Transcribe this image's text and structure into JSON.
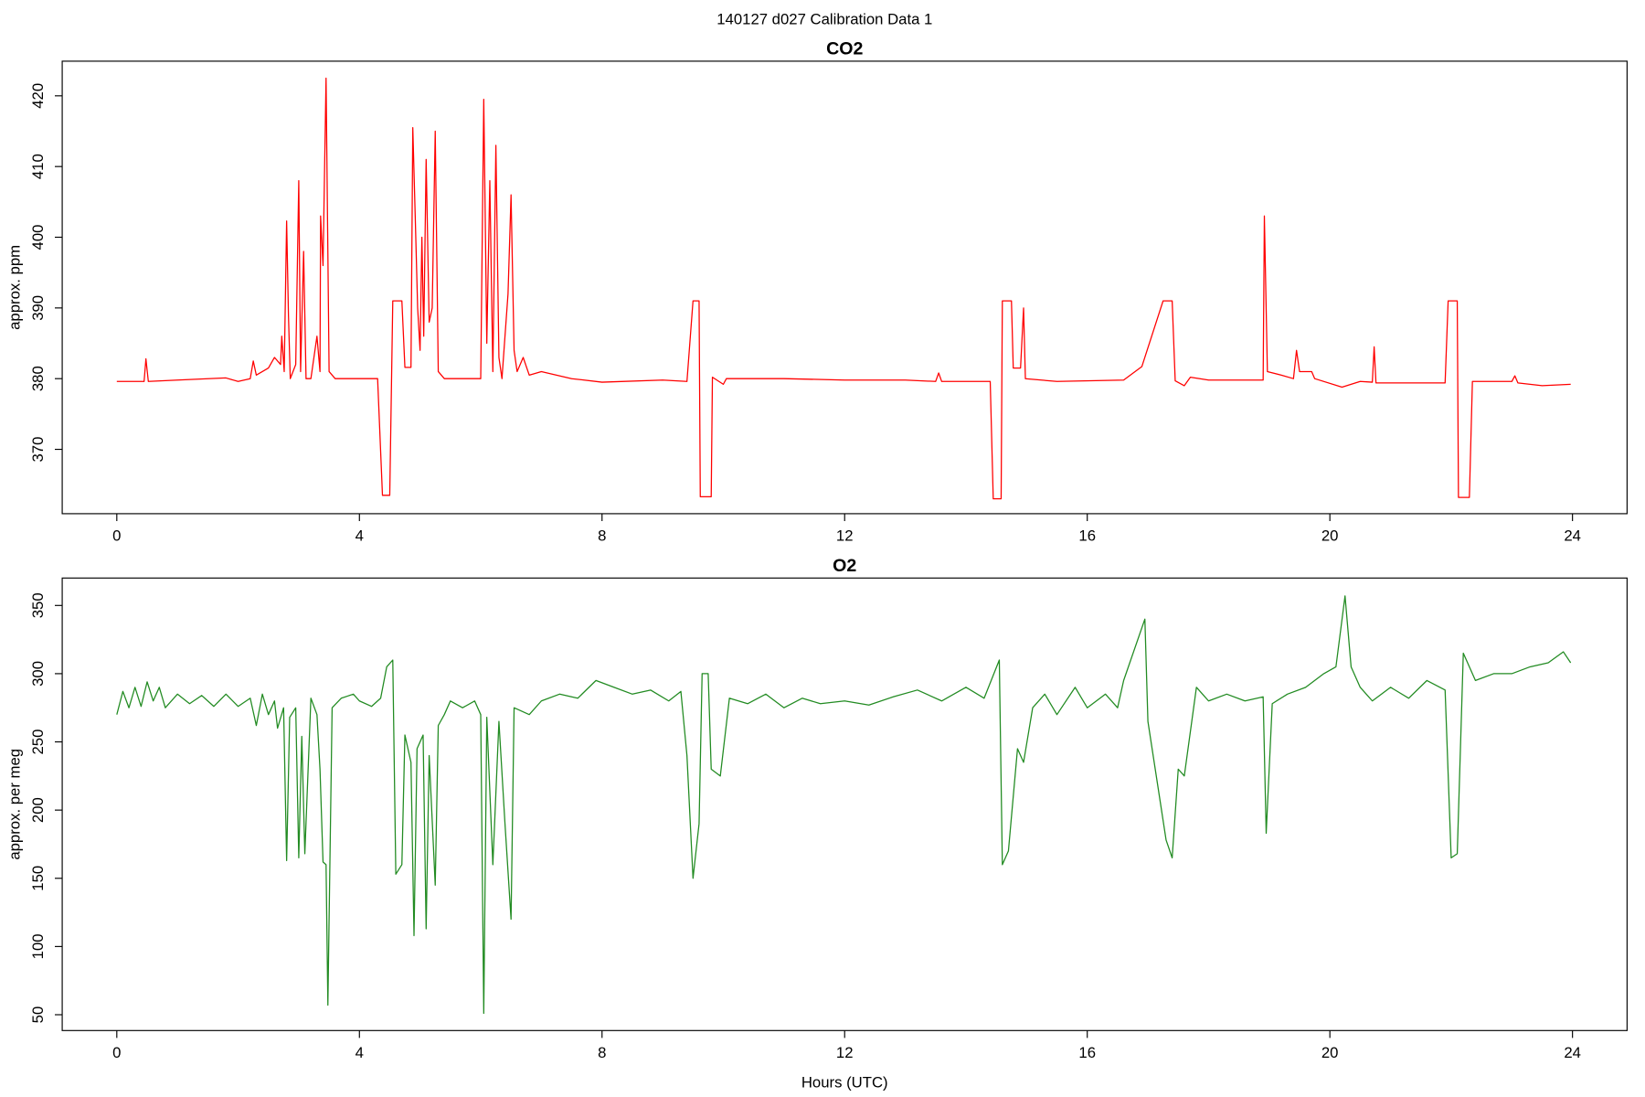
{
  "title": "140127   d027   Calibration Data 1",
  "chart_data": [
    {
      "type": "line",
      "title": "CO2",
      "y_label": "approx. ppm",
      "color": "#ff0000",
      "xlim": [
        -0.9,
        24.9
      ],
      "xticks": [
        0,
        4,
        8,
        12,
        16,
        20,
        24
      ],
      "ylim": [
        360.9,
        424.9
      ],
      "yticks": [
        370,
        380,
        390,
        400,
        410,
        420
      ],
      "x": [
        0,
        0.45,
        0.48,
        0.52,
        1,
        1.8,
        2.0,
        2.2,
        2.25,
        2.3,
        2.5,
        2.6,
        2.7,
        2.72,
        2.76,
        2.8,
        2.83,
        2.86,
        2.95,
        3.0,
        3.03,
        3.08,
        3.12,
        3.2,
        3.3,
        3.35,
        3.36,
        3.4,
        3.45,
        3.5,
        3.6,
        4.0,
        4.3,
        4.38,
        4.5,
        4.55,
        4.7,
        4.75,
        4.85,
        4.88,
        4.92,
        4.96,
        5.0,
        5.03,
        5.06,
        5.1,
        5.15,
        5.2,
        5.25,
        5.3,
        5.4,
        6.0,
        6.05,
        6.1,
        6.15,
        6.2,
        6.25,
        6.3,
        6.35,
        6.45,
        6.5,
        6.55,
        6.6,
        6.7,
        6.8,
        7,
        7.5,
        8,
        9,
        9.4,
        9.5,
        9.6,
        9.62,
        9.8,
        9.82,
        10,
        10.05,
        11,
        12,
        13,
        13.5,
        13.55,
        13.6,
        14.4,
        14.45,
        14.58,
        14.6,
        14.75,
        14.78,
        14.9,
        14.95,
        14.98,
        15.5,
        16.6,
        16.9,
        17.25,
        17.4,
        17.45,
        17.6,
        17.7,
        18,
        18.9,
        18.92,
        18.97,
        19.2,
        19.4,
        19.45,
        19.5,
        19.7,
        19.75,
        20.2,
        20.5,
        20.7,
        20.73,
        20.76,
        21.5,
        21.9,
        21.95,
        22.1,
        22.12,
        22.3,
        22.35,
        23,
        23.05,
        23.1,
        23.5,
        23.97
      ],
      "values": [
        379.6,
        379.6,
        382.8,
        379.6,
        379.8,
        380.1,
        379.6,
        380,
        382.5,
        380.5,
        381.5,
        383,
        382,
        386,
        381,
        402.3,
        389,
        380,
        382,
        408,
        381,
        398,
        380,
        380,
        386,
        381,
        403,
        396,
        422.5,
        381,
        380,
        380,
        380,
        363.5,
        363.5,
        391,
        391,
        381.6,
        381.6,
        415.5,
        403,
        390,
        384,
        400,
        386,
        411,
        388,
        390,
        415,
        381,
        380,
        380,
        419.5,
        385,
        408,
        381,
        413,
        383,
        380,
        392,
        406,
        384,
        381,
        383,
        380.5,
        381,
        380,
        379.5,
        379.8,
        379.6,
        391,
        391,
        363.3,
        363.3,
        380.2,
        379.2,
        380,
        380,
        379.8,
        379.8,
        379.6,
        380.8,
        379.6,
        379.6,
        363,
        363,
        391,
        391,
        381.5,
        381.5,
        390,
        380,
        379.6,
        379.8,
        381.7,
        391,
        391,
        379.7,
        379,
        380.2,
        379.8,
        379.8,
        403,
        381,
        380.5,
        380,
        384,
        381,
        381,
        380,
        378.8,
        379.6,
        379.5,
        384.5,
        379.4,
        379.4,
        379.4,
        391,
        391,
        363.2,
        363.2,
        379.6,
        379.6,
        380.4,
        379.4,
        379,
        379.2
      ]
    },
    {
      "type": "line",
      "title": "O2",
      "y_label": "approx. per meg",
      "x_label": "Hours (UTC)",
      "color": "#228b22",
      "xlim": [
        -0.9,
        24.9
      ],
      "xticks": [
        0,
        4,
        8,
        12,
        16,
        20,
        24
      ],
      "ylim": [
        38.4,
        370.1
      ],
      "yticks": [
        50,
        100,
        150,
        200,
        250,
        300,
        350
      ],
      "x": [
        0,
        0.1,
        0.2,
        0.3,
        0.4,
        0.5,
        0.6,
        0.7,
        0.8,
        1.0,
        1.2,
        1.4,
        1.6,
        1.8,
        2.0,
        2.2,
        2.3,
        2.4,
        2.5,
        2.6,
        2.65,
        2.75,
        2.8,
        2.85,
        2.95,
        3.0,
        3.05,
        3.1,
        3.2,
        3.3,
        3.35,
        3.4,
        3.45,
        3.48,
        3.55,
        3.7,
        3.9,
        4.0,
        4.2,
        4.35,
        4.45,
        4.55,
        4.6,
        4.7,
        4.75,
        4.85,
        4.9,
        4.95,
        5.05,
        5.1,
        5.15,
        5.25,
        5.3,
        5.4,
        5.5,
        5.7,
        5.9,
        6.0,
        6.05,
        6.1,
        6.2,
        6.3,
        6.4,
        6.5,
        6.55,
        6.8,
        7.0,
        7.3,
        7.6,
        7.9,
        8.2,
        8.5,
        8.8,
        9.1,
        9.3,
        9.4,
        9.5,
        9.6,
        9.65,
        9.75,
        9.8,
        9.95,
        10.1,
        10.4,
        10.7,
        11,
        11.3,
        11.6,
        12,
        12.4,
        12.8,
        13.2,
        13.6,
        14.0,
        14.3,
        14.55,
        14.6,
        14.7,
        14.85,
        14.95,
        15.1,
        15.3,
        15.5,
        15.8,
        16.0,
        16.3,
        16.5,
        16.6,
        16.95,
        17.0,
        17.3,
        17.4,
        17.5,
        17.6,
        17.8,
        18,
        18.3,
        18.6,
        18.9,
        18.95,
        19.05,
        19.3,
        19.6,
        19.9,
        20.1,
        20.25,
        20.35,
        20.5,
        20.7,
        21,
        21.3,
        21.6,
        21.9,
        22.0,
        22.1,
        22.2,
        22.4,
        22.7,
        23,
        23.3,
        23.6,
        23.85,
        23.97
      ],
      "values": [
        270,
        287,
        275,
        290,
        276,
        294,
        280,
        290,
        275,
        285,
        278,
        284,
        276,
        285,
        276,
        282,
        262,
        285,
        270,
        280,
        260,
        275,
        163,
        268,
        275,
        165,
        254,
        168,
        282,
        270,
        230,
        162,
        160,
        57,
        275,
        282,
        285,
        280,
        276,
        282,
        305,
        310,
        153,
        160,
        255,
        235,
        108,
        245,
        255,
        113,
        240,
        145,
        262,
        270,
        280,
        275,
        280,
        270,
        51,
        268,
        160,
        265,
        190,
        120,
        275,
        270,
        280,
        285,
        282,
        295,
        290,
        285,
        288,
        280,
        287,
        240,
        150,
        190,
        300,
        300,
        230,
        225,
        282,
        278,
        285,
        275,
        282,
        278,
        280,
        277,
        283,
        288,
        280,
        290,
        282,
        310,
        160,
        170,
        245,
        235,
        275,
        285,
        270,
        290,
        275,
        285,
        275,
        295,
        340,
        265,
        178,
        165,
        230,
        225,
        290,
        280,
        285,
        280,
        283,
        183,
        278,
        285,
        290,
        300,
        305,
        357,
        305,
        290,
        280,
        290,
        282,
        295,
        288,
        165,
        168,
        315,
        295,
        300,
        300,
        305,
        308,
        316,
        308
      ]
    }
  ]
}
